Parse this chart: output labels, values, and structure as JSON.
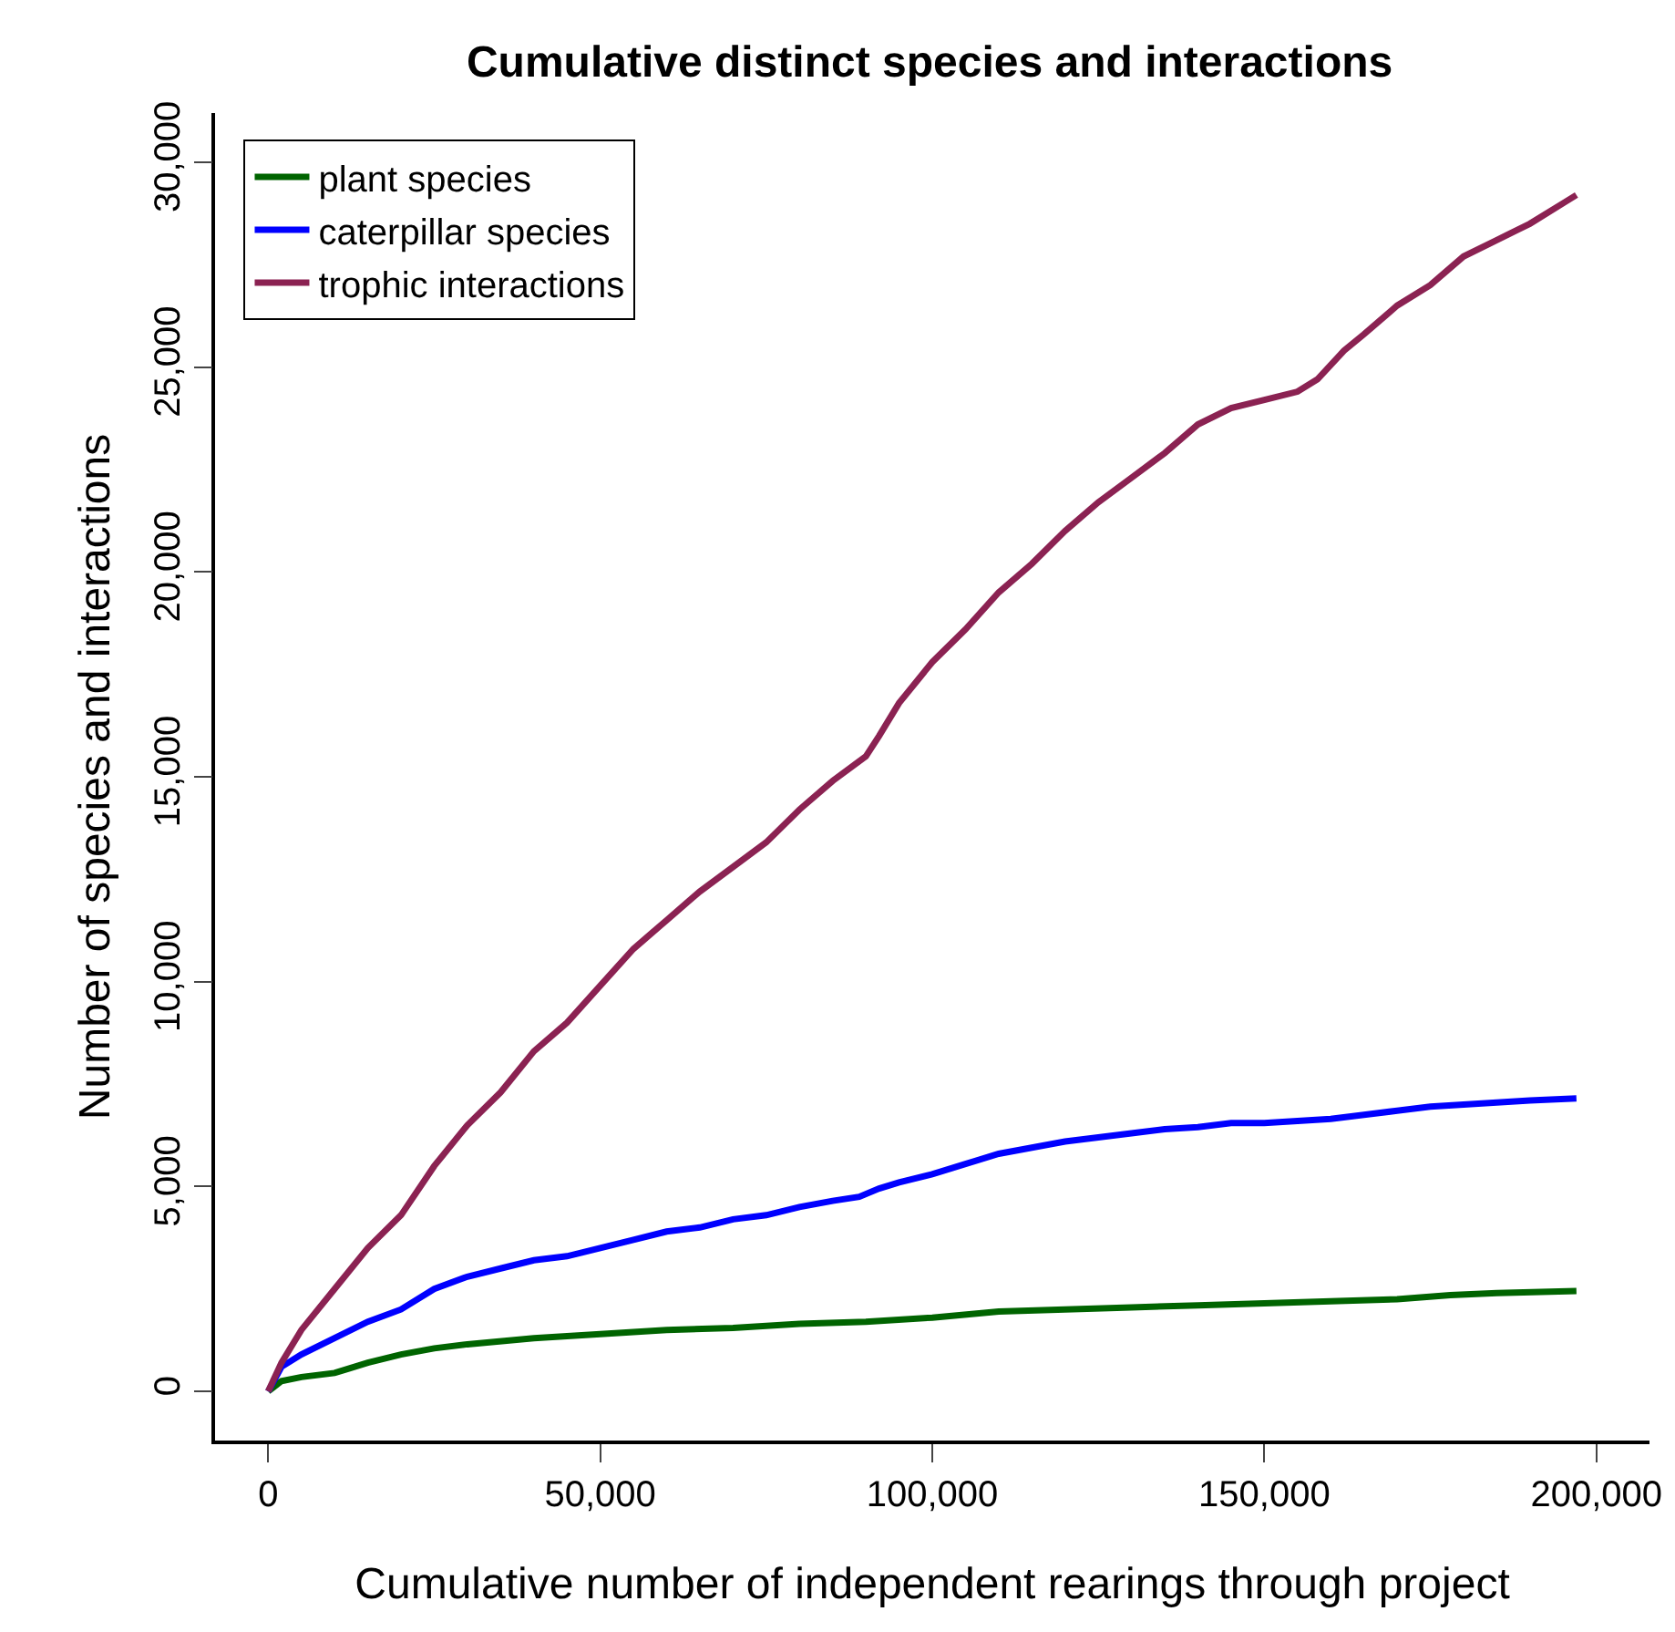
{
  "chart_data": {
    "type": "line",
    "title": "Cumulative distinct species and interactions",
    "xlabel": "Cumulative number of independent rearings through project",
    "ylabel": "Number of species and interactions",
    "xlim": [
      -8000,
      208000
    ],
    "xticks": [
      {
        "value": 0,
        "label": "0"
      },
      {
        "value": 50000,
        "label": "50,000"
      },
      {
        "value": 100000,
        "label": "100,000"
      },
      {
        "value": 150000,
        "label": "150,000"
      },
      {
        "value": 200000,
        "label": "200,000"
      }
    ],
    "ylim": [
      -1200,
      31200
    ],
    "yticks": [
      {
        "value": 0,
        "label": "0"
      },
      {
        "value": 5000,
        "label": "5,000"
      },
      {
        "value": 10000,
        "label": "10,000"
      },
      {
        "value": 15000,
        "label": "15,000"
      },
      {
        "value": 20000,
        "label": "20,000"
      },
      {
        "value": 25000,
        "label": "25,000"
      },
      {
        "value": 30000,
        "label": "30,000"
      }
    ],
    "grid": false,
    "legend": "top left",
    "marker": "none",
    "line_style": "solid",
    "series": [
      {
        "name": "plant species",
        "color": "#006400",
        "x": [
          0,
          2000,
          5000,
          10000,
          12000,
          15000,
          20000,
          25000,
          30000,
          40000,
          50000,
          60000,
          70000,
          80000,
          90000,
          100000,
          110000,
          120000,
          130000,
          140000,
          150000,
          160000,
          170000,
          174000,
          178000,
          185000,
          197000
        ],
        "values": [
          0,
          250,
          350,
          450,
          550,
          700,
          900,
          1050,
          1150,
          1300,
          1400,
          1500,
          1550,
          1650,
          1700,
          1800,
          1950,
          2000,
          2050,
          2100,
          2150,
          2200,
          2250,
          2300,
          2350,
          2400,
          2450
        ]
      },
      {
        "name": "caterpillar species",
        "color": "#0000ff",
        "x": [
          0,
          2000,
          5000,
          10000,
          15000,
          20000,
          25000,
          30000,
          35000,
          40000,
          45000,
          50000,
          55000,
          60000,
          65000,
          70000,
          75000,
          80000,
          85000,
          89000,
          92000,
          95000,
          100000,
          105000,
          110000,
          115000,
          120000,
          125000,
          130000,
          135000,
          140000,
          145000,
          150000,
          155000,
          160000,
          165000,
          170000,
          175000,
          180000,
          185000,
          190000,
          197000
        ],
        "values": [
          0,
          600,
          900,
          1300,
          1700,
          2000,
          2500,
          2800,
          3000,
          3200,
          3300,
          3500,
          3700,
          3900,
          4000,
          4200,
          4300,
          4500,
          4650,
          4750,
          4950,
          5100,
          5300,
          5550,
          5800,
          5950,
          6100,
          6200,
          6300,
          6400,
          6450,
          6550,
          6550,
          6600,
          6650,
          6750,
          6850,
          6950,
          7000,
          7050,
          7100,
          7150
        ]
      },
      {
        "name": "trophic interactions",
        "color": "#8b2252",
        "x": [
          0,
          2000,
          5000,
          10000,
          15000,
          20000,
          25000,
          30000,
          35000,
          40000,
          45000,
          50000,
          55000,
          60000,
          65000,
          70000,
          75000,
          80000,
          85000,
          90000,
          92000,
          95000,
          100000,
          105000,
          110000,
          115000,
          120000,
          125000,
          130000,
          135000,
          140000,
          145000,
          150000,
          155000,
          158000,
          162000,
          165000,
          170000,
          175000,
          180000,
          185000,
          190000,
          195000,
          197000
        ],
        "values": [
          0,
          700,
          1500,
          2500,
          3500,
          4300,
          5500,
          6500,
          7300,
          8300,
          9000,
          9900,
          10800,
          11500,
          12200,
          12800,
          13400,
          14200,
          14900,
          15500,
          16000,
          16800,
          17800,
          18600,
          19500,
          20200,
          21000,
          21700,
          22300,
          22900,
          23600,
          24000,
          24200,
          24400,
          24700,
          25400,
          25800,
          26500,
          27000,
          27700,
          28100,
          28500,
          29000,
          29200
        ]
      }
    ]
  }
}
